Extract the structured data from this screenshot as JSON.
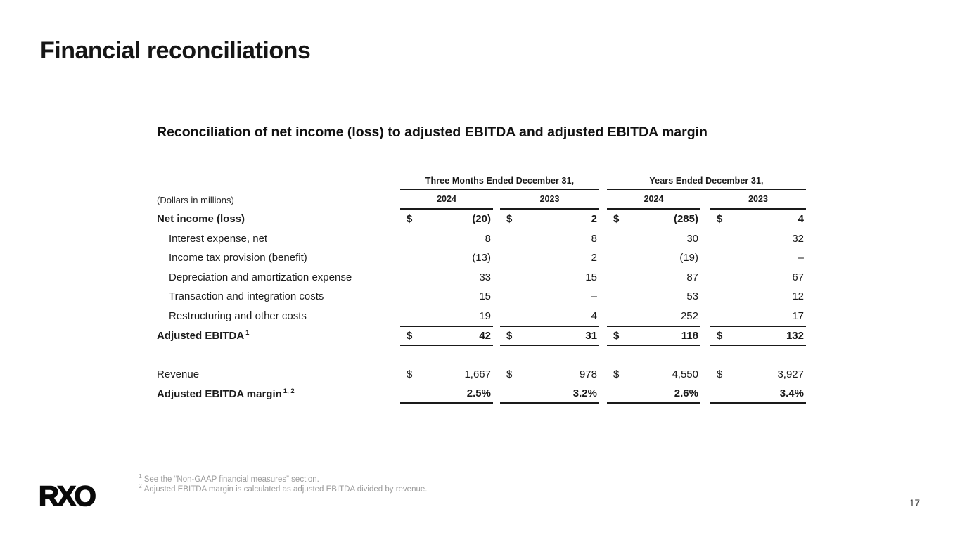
{
  "slide": {
    "title": "Financial reconciliations",
    "page_number": "17",
    "logo_text": "RXO"
  },
  "table": {
    "subtitle": "Reconciliation of net income (loss) to adjusted EBITDA and adjusted EBITDA margin",
    "units_label": "(Dollars in millions)",
    "currency": "$",
    "column_groups": [
      {
        "label": "Three Months Ended December 31,",
        "years": [
          "2024",
          "2023"
        ]
      },
      {
        "label": "Years Ended December 31,",
        "years": [
          "2024",
          "2023"
        ]
      }
    ],
    "rows": [
      {
        "label": "Net income (loss)",
        "values": [
          "(20)",
          "2",
          "(285)",
          "4"
        ]
      },
      {
        "label": "Interest expense, net",
        "values": [
          "8",
          "8",
          "30",
          "32"
        ]
      },
      {
        "label": "Income tax provision (benefit)",
        "values": [
          "(13)",
          "2",
          "(19)",
          "–"
        ]
      },
      {
        "label": "Depreciation and amortization expense",
        "values": [
          "33",
          "15",
          "87",
          "67"
        ]
      },
      {
        "label": "Transaction and integration costs",
        "values": [
          "15",
          "–",
          "53",
          "12"
        ]
      },
      {
        "label": "Restructuring and other costs",
        "values": [
          "19",
          "4",
          "252",
          "17"
        ]
      },
      {
        "label": "Adjusted EBITDA",
        "sup": "1",
        "values": [
          "42",
          "31",
          "118",
          "132"
        ]
      },
      {
        "label": "Revenue",
        "values": [
          "1,667",
          "978",
          "4,550",
          "3,927"
        ]
      },
      {
        "label": "Adjusted EBITDA margin",
        "sup": "1, 2",
        "values": [
          "2.5%",
          "3.2%",
          "2.6%",
          "3.4%"
        ]
      }
    ]
  },
  "footnotes": [
    {
      "mark": "1",
      "text": "See the “Non-GAAP financial measures” section."
    },
    {
      "mark": "2",
      "text": "Adjusted EBITDA margin is calculated as adjusted EBITDA divided by revenue."
    }
  ],
  "colors": {
    "text": "#1a1a1a",
    "rule": "#1a1a1a",
    "footnote": "#9b9b9b",
    "background": "#ffffff"
  }
}
